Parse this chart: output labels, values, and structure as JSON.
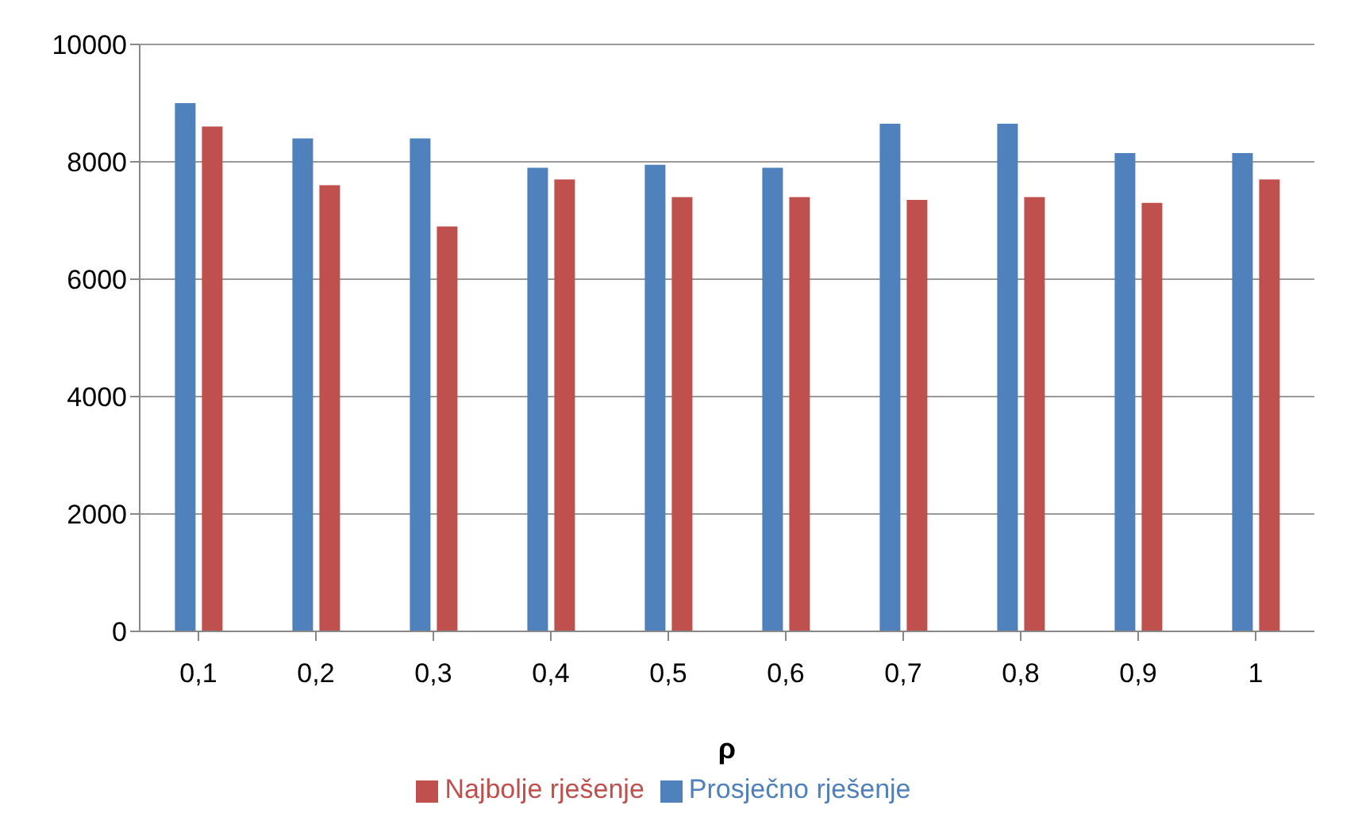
{
  "chart_data": {
    "type": "bar",
    "xlabel": "ρ",
    "categories": [
      "0,1",
      "0,2",
      "0,3",
      "0,4",
      "0,5",
      "0,6",
      "0,7",
      "0,8",
      "0,9",
      "1"
    ],
    "series": [
      {
        "name": "Prosječno rješenje",
        "color": "#4f81bd",
        "values": [
          9000,
          8400,
          8400,
          7900,
          7950,
          7900,
          8650,
          8650,
          8150,
          8150
        ]
      },
      {
        "name": "Najbolje rješenje",
        "color": "#c0504d",
        "values": [
          8600,
          7600,
          6900,
          7700,
          7400,
          7400,
          7350,
          7400,
          7300,
          7700
        ]
      }
    ],
    "ylim": [
      0,
      10000
    ],
    "yticks": [
      0,
      2000,
      4000,
      6000,
      8000,
      10000
    ],
    "grid": "y",
    "legend": "bottom"
  }
}
